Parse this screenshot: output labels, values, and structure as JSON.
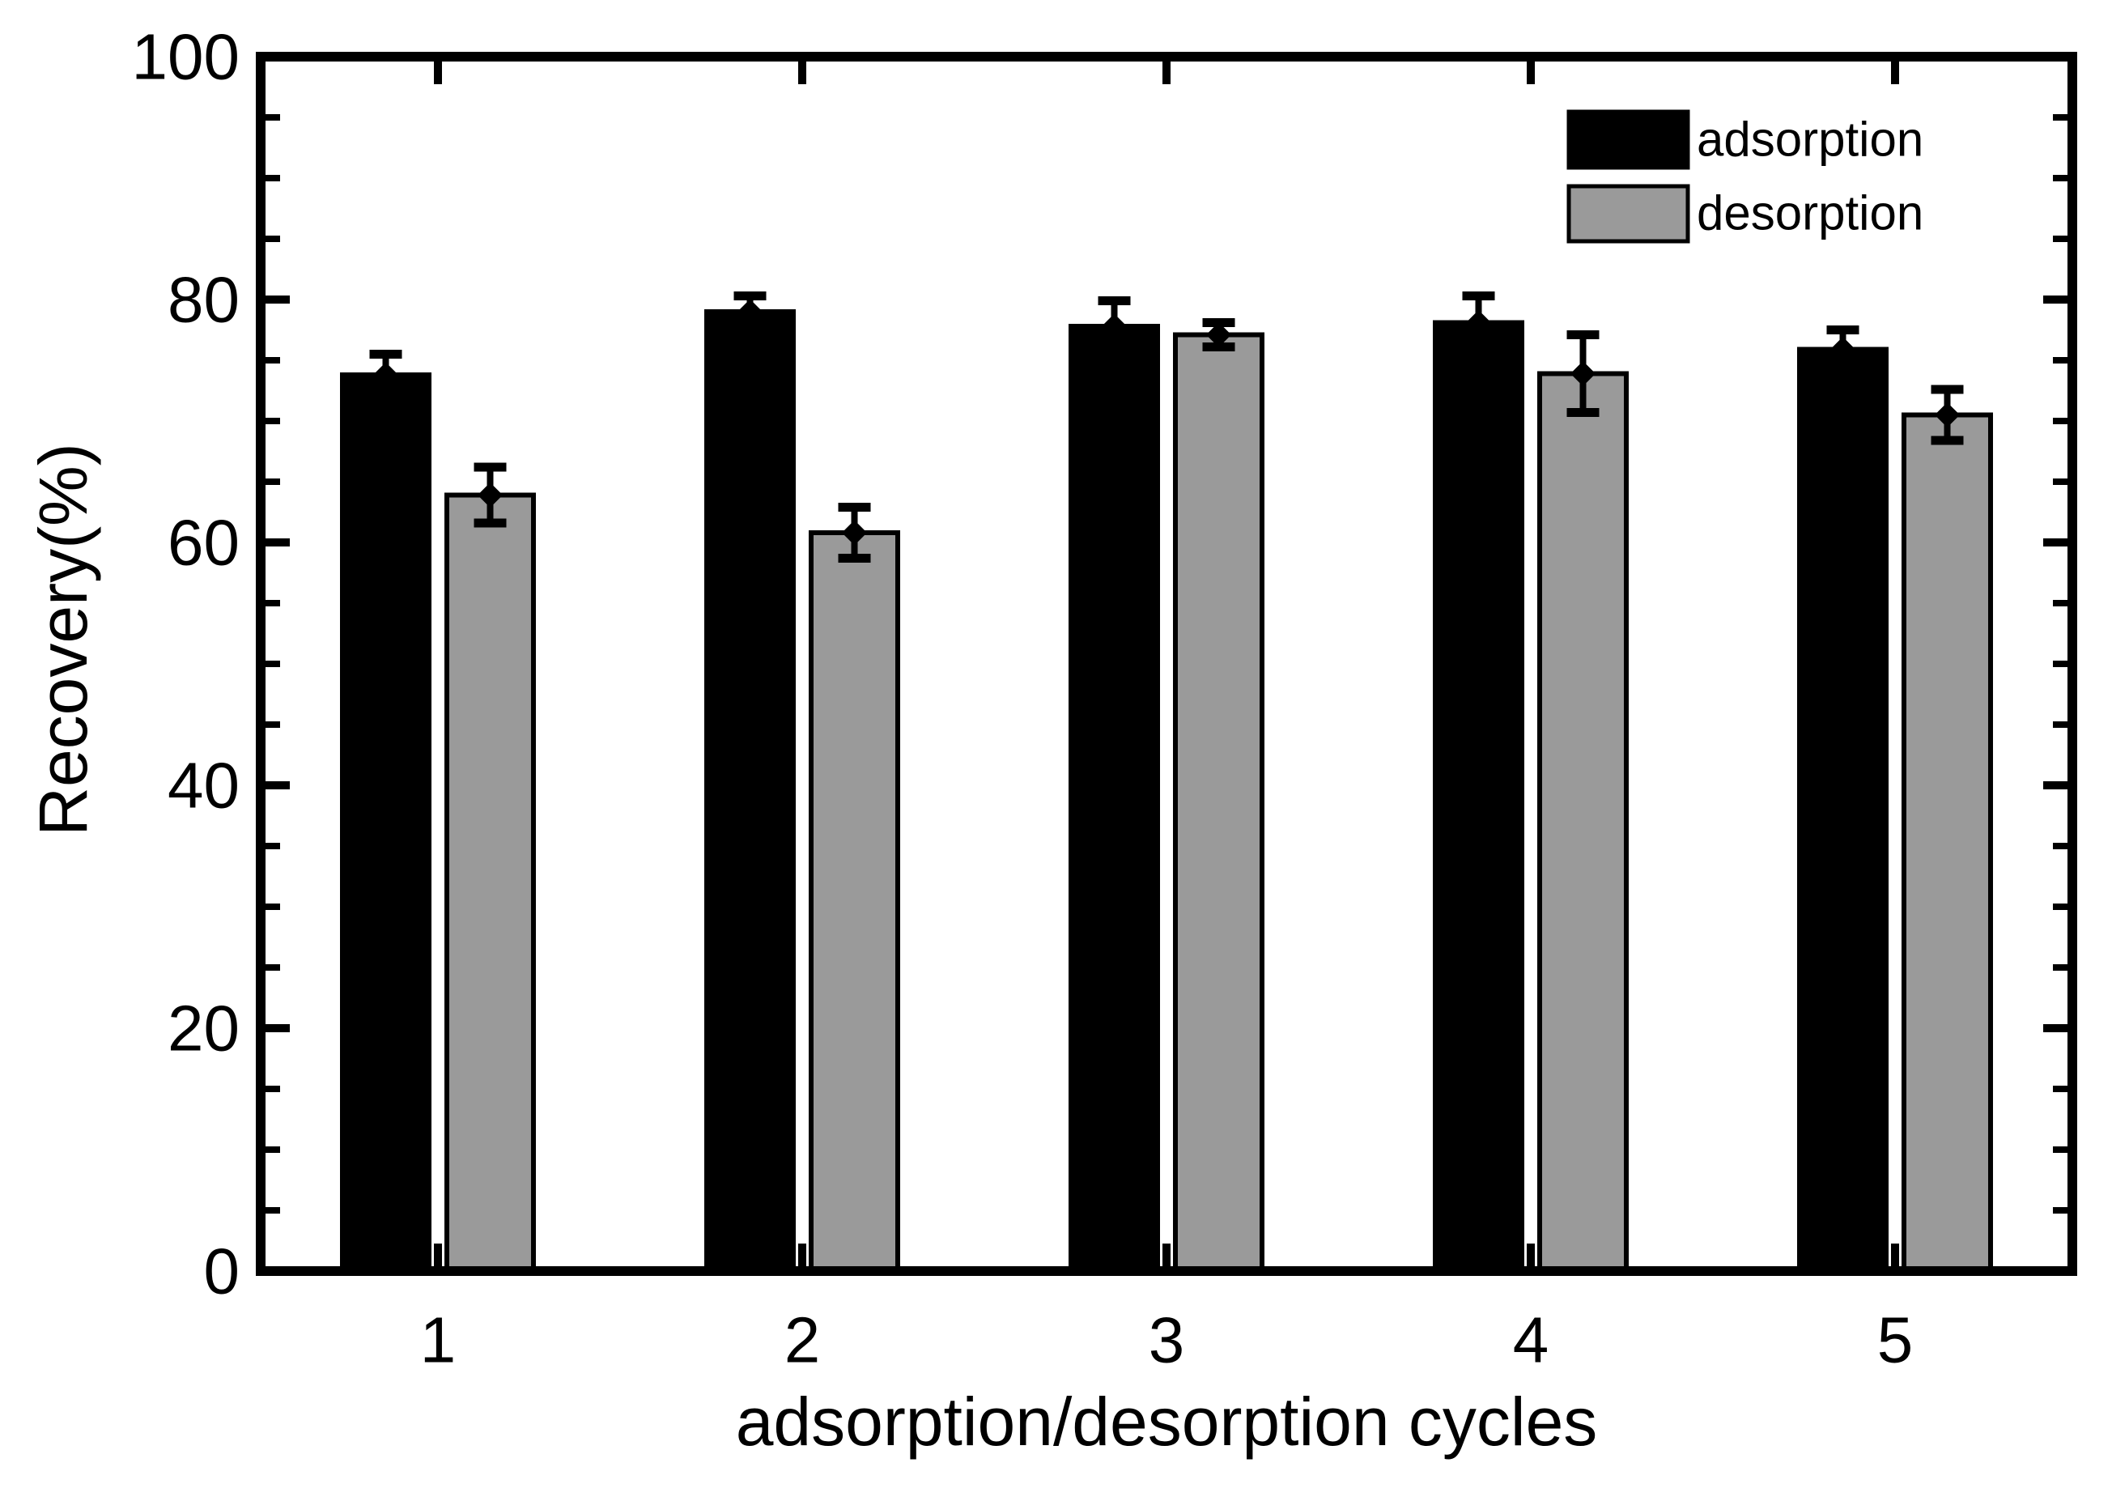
{
  "chart_data": {
    "type": "bar",
    "title": "",
    "xlabel": "adsorption/desorption cycles",
    "ylabel": "Recovery(%)",
    "categories": [
      "1",
      "2",
      "3",
      "4",
      "5"
    ],
    "ylim": [
      0,
      100
    ],
    "ytick_major_step": 20,
    "ytick_minor_step": 5,
    "ytick_labels": [
      "0",
      "20",
      "40",
      "60",
      "80",
      "100"
    ],
    "grid": "off",
    "legend_position": "top-right",
    "bar_style": "grouped-with-error-bars",
    "series": [
      {
        "name": "adsorption",
        "color": "#000000",
        "values": [
          73.8,
          79.0,
          77.8,
          78.1,
          75.9
        ],
        "errors": [
          1.7,
          1.3,
          2.1,
          2.2,
          1.6
        ]
      },
      {
        "name": "desorption",
        "color": "#9a9a9a",
        "values": [
          63.9,
          60.8,
          77.1,
          73.9,
          70.5
        ],
        "errors": [
          2.3,
          2.1,
          1.0,
          3.2,
          2.1
        ]
      }
    ],
    "colors": {
      "frame": "#000000",
      "background": "#ffffff",
      "error_bar": "#000000"
    }
  }
}
